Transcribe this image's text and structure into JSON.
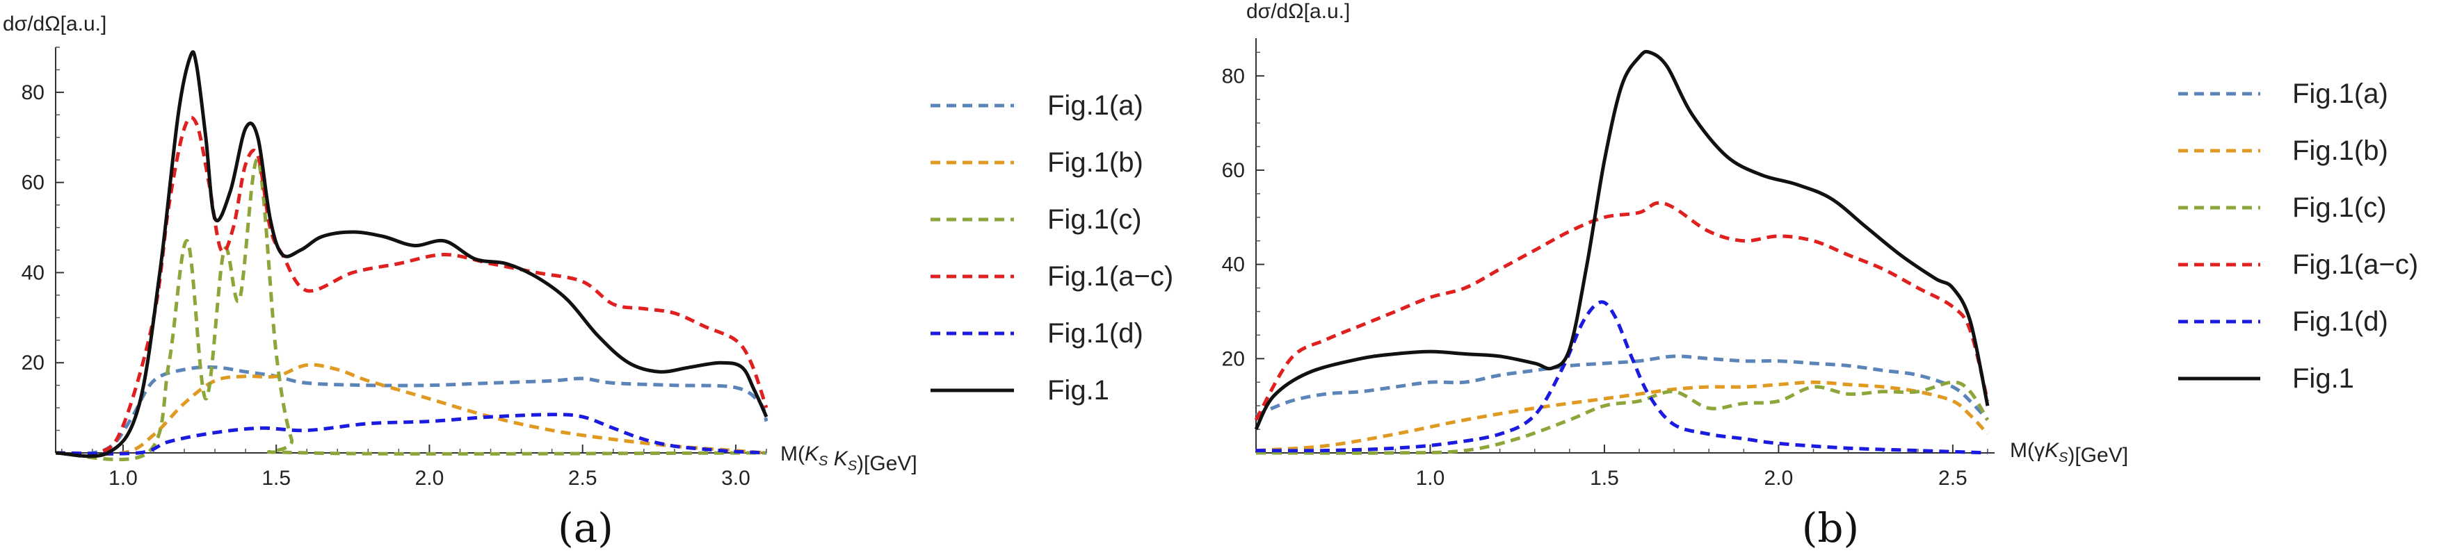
{
  "chart_data": [
    {
      "type": "line",
      "panel_label": "(a)",
      "ylabel": "dσ/dΩ[a.u.]",
      "xlabel": "M(K_S K_S)[GeV]",
      "xlim": [
        0.78,
        3.1
      ],
      "ylim": [
        0,
        90
      ],
      "xticks": [
        1.0,
        1.5,
        2.0,
        2.5,
        3.0
      ],
      "xtick_labels": [
        "1.0",
        "1.5",
        "2.0",
        "2.5",
        "3.0"
      ],
      "yticks": [
        20,
        40,
        60,
        80
      ],
      "ytick_labels": [
        "20",
        "40",
        "60",
        "80"
      ],
      "grid": false,
      "legend": "right",
      "series": [
        {
          "name": "Fig.1(a)",
          "color": "#5b84b8",
          "dash": "dashed",
          "x": [
            0.78,
            0.9,
            0.97,
            1.03,
            1.1,
            1.2,
            1.3,
            1.4,
            1.5,
            1.6,
            1.8,
            2.0,
            2.2,
            2.4,
            2.5,
            2.6,
            2.8,
            3.0,
            3.08,
            3.1
          ],
          "y": [
            0,
            0,
            2,
            8,
            16,
            18.5,
            19,
            18,
            17,
            15.5,
            15,
            15,
            15.5,
            16,
            16.5,
            15.5,
            15,
            14.5,
            11,
            7
          ]
        },
        {
          "name": "Fig.1(b)",
          "color": "#e09a22",
          "dash": "dashed",
          "x": [
            0.78,
            1.0,
            1.1,
            1.2,
            1.3,
            1.4,
            1.5,
            1.6,
            1.7,
            1.8,
            2.0,
            2.2,
            2.4,
            2.6,
            2.8,
            3.0,
            3.1
          ],
          "y": [
            0,
            0,
            4,
            11,
            16,
            17,
            17,
            19.5,
            18.5,
            16,
            12,
            8,
            5,
            3,
            1.5,
            0.5,
            0
          ]
        },
        {
          "name": "Fig.1(c)",
          "color": "#8da63a",
          "dash": "dashed",
          "x": [
            0.78,
            1.08,
            1.15,
            1.21,
            1.27,
            1.33,
            1.38,
            1.44,
            1.5,
            1.55,
            1.6,
            3.1
          ],
          "y": [
            0,
            0,
            20,
            47,
            12,
            45,
            34,
            65,
            22,
            3,
            0,
            0
          ]
        },
        {
          "name": "Fig.1(a−c)",
          "color": "#e01f1f",
          "dash": "dashed",
          "x": [
            0.78,
            0.92,
            1.0,
            1.1,
            1.15,
            1.2,
            1.24,
            1.28,
            1.32,
            1.36,
            1.4,
            1.44,
            1.48,
            1.52,
            1.6,
            1.75,
            1.9,
            2.05,
            2.2,
            2.35,
            2.5,
            2.6,
            2.7,
            2.8,
            2.9,
            3.0,
            3.05,
            3.1
          ],
          "y": [
            0,
            0,
            6,
            30,
            55,
            72,
            73,
            60,
            45,
            50,
            64,
            66,
            50,
            44,
            36,
            40,
            42,
            44,
            42,
            40,
            38,
            33,
            32,
            31,
            28,
            25,
            20,
            10
          ]
        },
        {
          "name": "Fig.1(d)",
          "color": "#1a1ae0",
          "dash": "dashed",
          "x": [
            0.78,
            1.05,
            1.15,
            1.3,
            1.45,
            1.6,
            1.8,
            2.0,
            2.2,
            2.4,
            2.5,
            2.6,
            2.7,
            2.8,
            2.9,
            3.0,
            3.1
          ],
          "y": [
            0,
            0,
            2.5,
            4.5,
            5.5,
            5,
            6.5,
            7,
            8,
            8.5,
            8,
            5.5,
            3,
            1.5,
            0.8,
            0.3,
            0
          ]
        },
        {
          "name": "Fig.1",
          "color": "#111111",
          "dash": "solid",
          "x": [
            0.78,
            0.95,
            1.05,
            1.12,
            1.18,
            1.22,
            1.24,
            1.27,
            1.3,
            1.35,
            1.4,
            1.44,
            1.48,
            1.52,
            1.58,
            1.65,
            1.75,
            1.85,
            1.95,
            2.05,
            2.15,
            2.25,
            2.35,
            2.45,
            2.55,
            2.65,
            2.75,
            2.85,
            2.95,
            3.02,
            3.06,
            3.1
          ],
          "y": [
            0,
            0,
            10,
            40,
            75,
            88,
            86,
            70,
            52,
            58,
            72,
            70,
            52,
            44,
            45,
            48,
            49,
            48,
            46,
            47,
            43,
            42,
            39,
            34,
            26,
            20,
            18,
            19,
            20,
            19,
            14,
            8
          ]
        }
      ]
    },
    {
      "type": "line",
      "panel_label": "(b)",
      "ylabel": "dσ/dΩ[a.u.]",
      "xlabel": "M(γK_S)[GeV]",
      "xlim": [
        0.5,
        2.62
      ],
      "ylim": [
        0,
        88
      ],
      "xticks": [
        1.0,
        1.5,
        2.0,
        2.5
      ],
      "xtick_labels": [
        "1.0",
        "1.5",
        "2.0",
        "2.5"
      ],
      "yticks": [
        20,
        40,
        60,
        80
      ],
      "ytick_labels": [
        "20",
        "40",
        "60",
        "80"
      ],
      "grid": false,
      "legend": "right",
      "series": [
        {
          "name": "Fig.1(a)",
          "color": "#5b84b8",
          "dash": "dashed",
          "x": [
            0.5,
            0.6,
            0.7,
            0.8,
            0.9,
            1.0,
            1.1,
            1.2,
            1.3,
            1.4,
            1.5,
            1.6,
            1.7,
            1.8,
            1.9,
            2.0,
            2.1,
            2.2,
            2.3,
            2.4,
            2.5,
            2.55,
            2.6
          ],
          "y": [
            8,
            11,
            12.5,
            13,
            14,
            15,
            15,
            16.5,
            17.5,
            18.5,
            19,
            19.5,
            20.5,
            20,
            19.5,
            19.5,
            19,
            18.5,
            17.5,
            16.5,
            14,
            11,
            7
          ]
        },
        {
          "name": "Fig.1(b)",
          "color": "#e09a22",
          "dash": "dashed",
          "x": [
            0.5,
            0.7,
            0.9,
            1.1,
            1.3,
            1.5,
            1.6,
            1.7,
            1.8,
            1.9,
            2.0,
            2.1,
            2.2,
            2.3,
            2.4,
            2.5,
            2.55,
            2.6
          ],
          "y": [
            0.5,
            1.5,
            4,
            7,
            9.5,
            11.5,
            12.5,
            13.5,
            14,
            14,
            14.5,
            15,
            14.5,
            14,
            13,
            11,
            8,
            4
          ]
        },
        {
          "name": "Fig.1(c)",
          "color": "#8da63a",
          "dash": "dashed",
          "x": [
            0.5,
            0.9,
            1.1,
            1.25,
            1.4,
            1.5,
            1.6,
            1.7,
            1.8,
            1.9,
            2.0,
            2.1,
            2.2,
            2.3,
            2.4,
            2.5,
            2.55,
            2.6
          ],
          "y": [
            0,
            0,
            0.5,
            3,
            7,
            10,
            11,
            13,
            9.5,
            10.5,
            11,
            14,
            12.5,
            13,
            13,
            15,
            13,
            7
          ]
        },
        {
          "name": "Fig.1(a−c)",
          "color": "#e01f1f",
          "dash": "dashed",
          "x": [
            0.5,
            0.6,
            0.7,
            0.8,
            0.9,
            1.0,
            1.1,
            1.2,
            1.3,
            1.4,
            1.5,
            1.6,
            1.65,
            1.7,
            1.8,
            1.9,
            2.0,
            2.1,
            2.2,
            2.3,
            2.4,
            2.5,
            2.55,
            2.6
          ],
          "y": [
            7,
            20,
            24,
            27,
            30,
            33,
            35,
            39,
            43,
            47,
            50,
            51,
            53,
            52,
            47,
            45,
            46,
            45,
            42,
            39,
            35,
            31,
            26,
            11
          ]
        },
        {
          "name": "Fig.1(d)",
          "color": "#1a1ae0",
          "dash": "dashed",
          "x": [
            0.5,
            0.7,
            0.9,
            1.05,
            1.2,
            1.3,
            1.38,
            1.44,
            1.49,
            1.53,
            1.58,
            1.63,
            1.7,
            1.8,
            1.9,
            2.0,
            2.2,
            2.4,
            2.6
          ],
          "y": [
            0.5,
            0.5,
            1,
            2,
            4,
            8,
            18,
            28,
            32,
            29,
            20,
            12,
            6,
            4,
            3,
            2,
            1,
            0.5,
            0
          ]
        },
        {
          "name": "Fig.1",
          "color": "#111111",
          "dash": "solid",
          "x": [
            0.5,
            0.55,
            0.65,
            0.8,
            0.9,
            1.0,
            1.1,
            1.2,
            1.3,
            1.35,
            1.4,
            1.45,
            1.5,
            1.55,
            1.6,
            1.63,
            1.68,
            1.75,
            1.85,
            1.95,
            2.05,
            2.15,
            2.25,
            2.35,
            2.45,
            2.5,
            2.55,
            2.6
          ],
          "y": [
            5,
            12,
            17,
            20,
            21,
            21.5,
            21,
            20.5,
            19,
            18,
            22,
            40,
            62,
            78,
            84,
            85,
            82,
            72,
            63,
            59,
            57,
            54,
            48,
            42,
            37,
            35,
            28,
            10
          ]
        }
      ]
    }
  ]
}
